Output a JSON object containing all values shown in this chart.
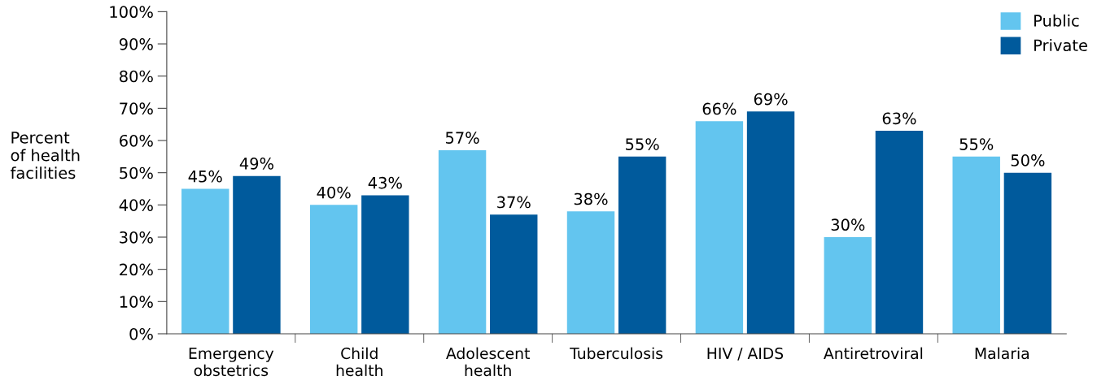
{
  "chart_data": {
    "type": "bar",
    "ylabel": "Percent\nof health\nfacilities",
    "categories": [
      "Emergency\nobstetrics",
      "Child\nhealth",
      "Adolescent\nhealth",
      "Tuberculosis",
      "HIV / AIDS",
      "Antiretroviral",
      "Malaria"
    ],
    "series": [
      {
        "name": "Public",
        "color": "#63c5ef",
        "values": [
          45,
          40,
          57,
          38,
          66,
          30,
          55
        ],
        "value_labels": [
          "45%",
          "40%",
          "57%",
          "38%",
          "66%",
          "30%",
          "55%"
        ]
      },
      {
        "name": "Private",
        "color": "#005a9c",
        "values": [
          49,
          43,
          37,
          55,
          69,
          63,
          50
        ],
        "value_labels": [
          "49%",
          "43%",
          "37%",
          "55%",
          "69%",
          "63%",
          "50%"
        ]
      }
    ],
    "ylim": [
      0,
      100
    ],
    "yticks": [
      {
        "value": 0,
        "label": "0%"
      },
      {
        "value": 10,
        "label": "10%"
      },
      {
        "value": 20,
        "label": "20%"
      },
      {
        "value": 30,
        "label": "30%"
      },
      {
        "value": 40,
        "label": "40%"
      },
      {
        "value": 50,
        "label": "50%"
      },
      {
        "value": 60,
        "label": "60%"
      },
      {
        "value": 70,
        "label": "70%"
      },
      {
        "value": 80,
        "label": "80%"
      },
      {
        "value": 90,
        "label": "90%"
      },
      {
        "value": 100,
        "label": "100%"
      }
    ],
    "grid": false,
    "legend": "top right"
  }
}
